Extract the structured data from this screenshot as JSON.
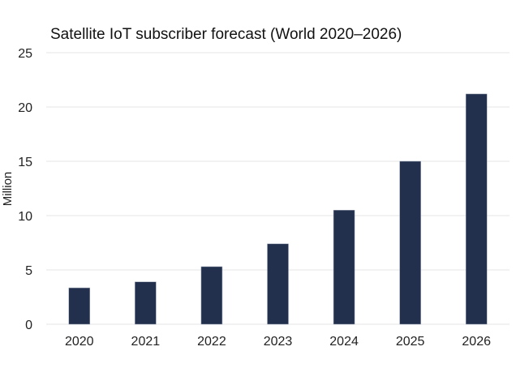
{
  "chart_data": {
    "type": "bar",
    "title": "Satellite IoT subscriber forecast (World 2020–2026)",
    "xlabel": "",
    "ylabel": "Million",
    "categories": [
      "2020",
      "2021",
      "2022",
      "2023",
      "2024",
      "2025",
      "2026"
    ],
    "values": [
      3.35,
      3.9,
      5.3,
      7.4,
      10.5,
      15.0,
      21.2
    ],
    "ylim": [
      0,
      25
    ],
    "yticks": [
      0,
      5,
      10,
      15,
      20,
      25
    ],
    "ytick_labels": [
      "0",
      "5",
      "10",
      "15",
      "20",
      "25"
    ],
    "grid": true,
    "legend": "none",
    "colors": {
      "bar": "#22304d"
    }
  }
}
